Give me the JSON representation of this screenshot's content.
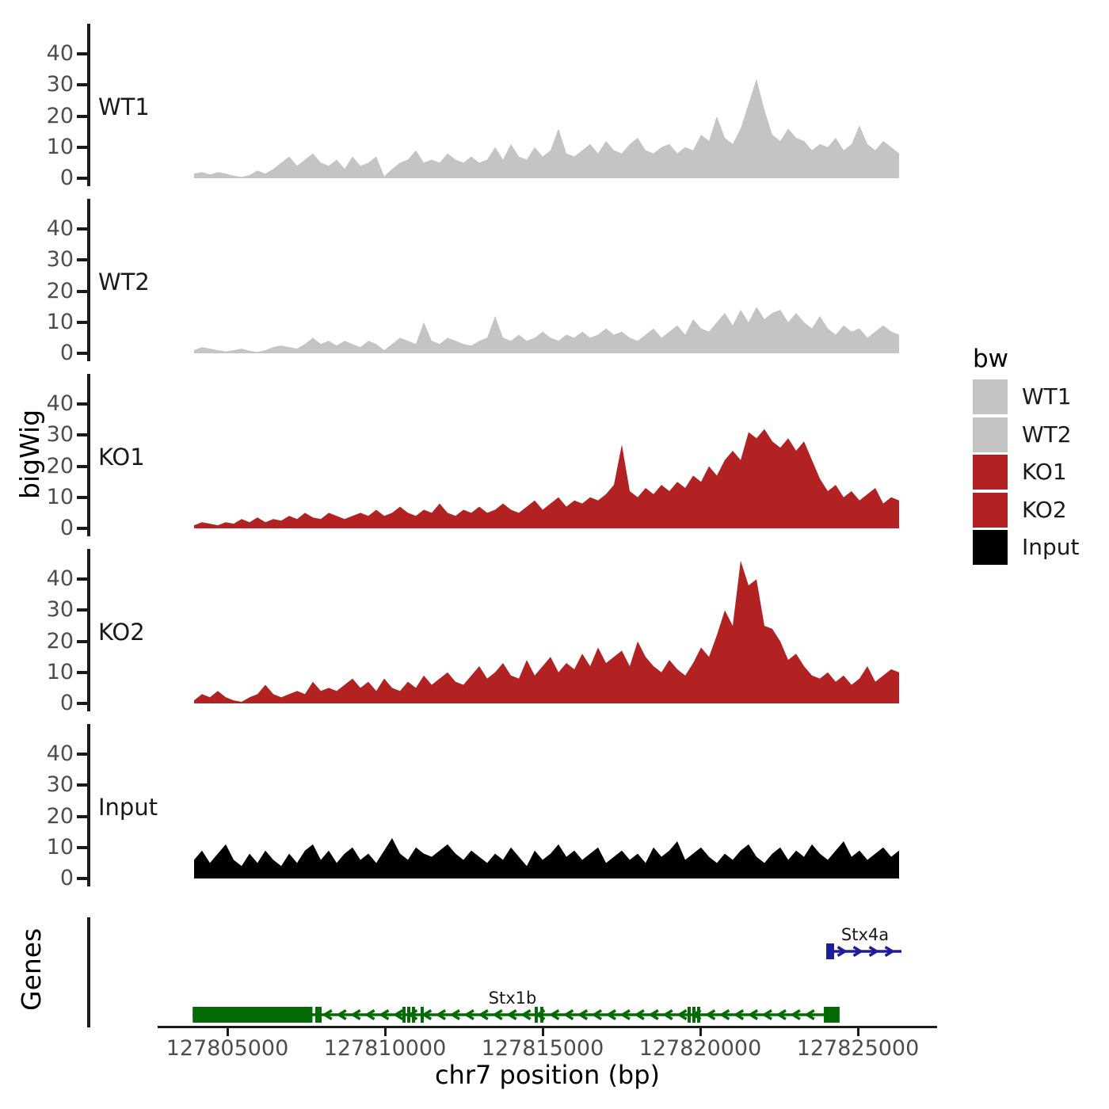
{
  "y_axis": {
    "title": "bigWig",
    "tick_labels": [
      "0",
      "10",
      "20",
      "30",
      "40"
    ],
    "tick_values": [
      0,
      10,
      20,
      30,
      40
    ]
  },
  "x_axis": {
    "title": "chr7 position (bp)",
    "tick_labels": [
      "127805000",
      "127810000",
      "127815000",
      "127820000",
      "127825000"
    ],
    "tick_values": [
      127805000,
      127810000,
      127815000,
      127820000,
      127825000
    ]
  },
  "genes_axis": {
    "title": "Genes"
  },
  "legend": {
    "title": "bw",
    "items": [
      {
        "label": "WT1",
        "color": "#c4c4c4"
      },
      {
        "label": "WT2",
        "color": "#c4c4c4"
      },
      {
        "label": "KO1",
        "color": "#b22222"
      },
      {
        "label": "KO2",
        "color": "#b22222"
      },
      {
        "label": "Input",
        "color": "#000000"
      }
    ]
  },
  "chart_data": {
    "type": "area",
    "title": "",
    "xlabel": "chr7 position (bp)",
    "ylabel": "bigWig",
    "x_start": 127803900,
    "x_step": 250,
    "x_range": [
      127802600,
      127827450
    ],
    "ylim": [
      0,
      49
    ],
    "y_ticks": [
      0,
      10,
      20,
      30,
      40
    ],
    "grid": false,
    "legend_position": "right",
    "series": [
      {
        "name": "WT1",
        "color": "#c4c4c4",
        "values": [
          1.5,
          2,
          1.2,
          2,
          1.5,
          0.8,
          0.4,
          1,
          2.5,
          1.5,
          3,
          5,
          7,
          4,
          6,
          8,
          5,
          4,
          6,
          3,
          7,
          4,
          5,
          7,
          0.6,
          3,
          5,
          6,
          9,
          5,
          6,
          5,
          8,
          6,
          5,
          7,
          5,
          6,
          10,
          6,
          11,
          7,
          6,
          10,
          7,
          9,
          16,
          8,
          7,
          9,
          11,
          8,
          12,
          9,
          8,
          11,
          13,
          9,
          8,
          10,
          11,
          8,
          10,
          9,
          14,
          12,
          20,
          13,
          11,
          16,
          24,
          32,
          22,
          14,
          12,
          16,
          13,
          12,
          9,
          11,
          10,
          13,
          9,
          11,
          17,
          11,
          9,
          12,
          10,
          8
        ]
      },
      {
        "name": "WT2",
        "color": "#c4c4c4",
        "values": [
          1,
          2,
          1.5,
          1,
          0.6,
          1,
          1.5,
          0.8,
          0.4,
          1,
          2,
          2.5,
          2,
          1.5,
          3,
          5,
          3,
          4,
          2.5,
          4,
          3,
          2,
          4,
          3,
          1,
          3,
          5,
          4,
          3,
          10,
          4,
          3,
          5,
          4,
          3,
          2.5,
          4,
          5,
          12,
          5,
          4,
          6,
          4,
          5,
          7,
          5,
          4,
          6,
          5,
          7,
          5,
          6,
          8,
          6,
          7,
          5,
          4,
          6,
          8,
          5,
          7,
          9,
          6,
          11,
          8,
          7,
          10,
          13,
          9,
          14,
          10,
          15,
          11,
          13,
          14,
          10,
          13,
          10,
          8,
          12,
          8,
          6,
          9,
          7,
          8,
          5,
          7,
          9,
          7,
          6
        ]
      },
      {
        "name": "KO1",
        "color": "#b22222",
        "values": [
          1,
          2,
          1.5,
          1,
          2,
          1.5,
          3,
          2,
          3.5,
          2,
          3,
          2.5,
          4,
          3,
          5,
          3.5,
          3,
          5,
          4,
          3,
          4,
          5,
          4,
          6,
          4,
          5,
          7,
          5,
          4,
          6,
          5,
          8,
          5,
          4,
          6,
          5,
          7,
          5,
          6,
          8,
          6,
          5,
          7,
          9,
          6,
          8,
          10,
          7,
          9,
          8,
          10,
          9,
          11,
          14,
          27,
          12,
          10,
          13,
          11,
          14,
          12,
          15,
          13,
          17,
          15,
          20,
          17,
          22,
          25,
          22,
          31,
          29,
          32,
          28,
          26,
          29,
          25,
          28,
          22,
          16,
          12,
          14,
          10,
          12,
          9,
          11,
          13,
          8,
          10,
          9
        ]
      },
      {
        "name": "KO2",
        "color": "#b22222",
        "values": [
          1,
          3,
          2,
          4,
          2,
          1,
          0.5,
          2,
          3,
          6,
          3,
          2,
          3,
          4,
          3,
          7,
          4,
          5,
          4,
          6,
          8,
          5,
          7,
          4,
          8,
          5,
          4,
          7,
          5,
          9,
          6,
          8,
          10,
          7,
          6,
          9,
          12,
          8,
          10,
          13,
          9,
          8,
          14,
          9,
          12,
          15,
          10,
          13,
          11,
          16,
          12,
          18,
          13,
          15,
          17,
          12,
          20,
          15,
          12,
          10,
          14,
          11,
          9,
          13,
          18,
          15,
          22,
          30,
          25,
          46,
          38,
          40,
          25,
          24,
          20,
          14,
          16,
          12,
          9,
          8,
          10,
          7,
          9,
          6,
          8,
          12,
          7,
          9,
          11,
          10
        ]
      },
      {
        "name": "Input",
        "color": "#000000",
        "values": [
          6,
          9,
          5,
          8,
          11,
          6,
          4,
          8,
          5,
          9,
          6,
          4,
          8,
          5,
          9,
          11,
          6,
          9,
          5,
          8,
          10,
          6,
          8,
          5,
          9,
          13,
          8,
          6,
          10,
          8,
          7,
          9,
          11,
          8,
          6,
          9,
          7,
          5,
          8,
          6,
          10,
          7,
          4,
          9,
          6,
          8,
          11,
          7,
          9,
          6,
          8,
          10,
          5,
          7,
          9,
          6,
          8,
          5,
          10,
          7,
          9,
          12,
          6,
          8,
          10,
          7,
          5,
          8,
          6,
          9,
          11,
          7,
          5,
          8,
          10,
          6,
          9,
          7,
          11,
          8,
          6,
          9,
          12,
          7,
          9,
          6,
          8,
          10,
          7,
          9
        ]
      }
    ],
    "genes": [
      {
        "name": "Stx1b",
        "color": "#046b04",
        "strand": "-",
        "row": "lower",
        "start": 127803900,
        "end": 127824400,
        "thick_boxes": [
          [
            127803900,
            127807700
          ],
          [
            127823920,
            127824420
          ]
        ],
        "exon_bars": [
          127807839,
          127807940,
          127810603,
          127810754,
          127810905,
          127811181,
          127814799,
          127814975,
          127819648,
          127819799,
          127819950
        ],
        "arrow_start": 127808200,
        "arrow_end": 127823700,
        "arrow_step": 450,
        "label_pos": 127814045
      },
      {
        "name": "Stx4a",
        "color": "#1e1e9c",
        "strand": "+",
        "row": "upper",
        "start": 127823995,
        "end": 127826382,
        "thick_boxes": [
          [
            127823995,
            127824246
          ]
        ],
        "exon_bars": [],
        "arrow_start": 127824473,
        "arrow_end": 127826382,
        "arrow_step": 503,
        "label_pos": 127825226
      }
    ]
  }
}
